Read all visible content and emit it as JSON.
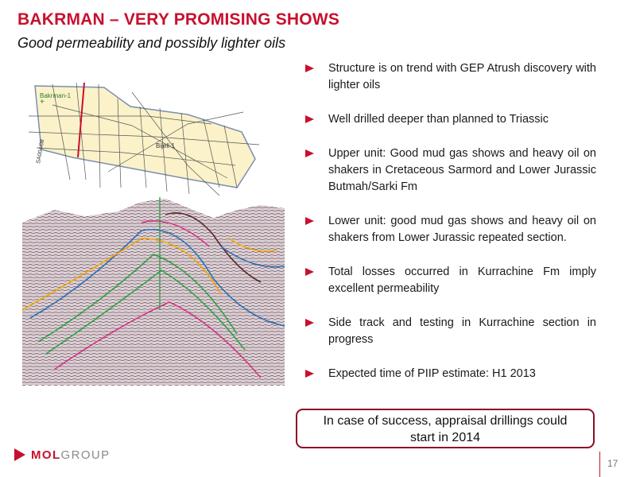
{
  "slide": {
    "title": "BAKRMAN – VERY PROMISING SHOWS",
    "subtitle": "Good permeability and possibly lighter oils",
    "page_number": "17"
  },
  "map": {
    "labels": {
      "well_1": "Bakrman-1",
      "well_2": "Bijell-1",
      "line": "SA004/08"
    }
  },
  "bullets": [
    "Structure is on trend with GEP Atrush discovery with lighter oils",
    "Well drilled deeper than planned to Triassic",
    "Upper unit: Good mud gas shows and heavy oil on shakers in Cretaceous Sarmord and Lower Jurassic Butmah/Sarki Fm",
    "Lower unit: good mud gas shows and heavy oil on shakers from Lower Jurassic repeated section.",
    "Total losses occurred in Kurrachine Fm imply excellent permeability",
    "Side track and testing in Kurrachine section in progress",
    "Expected time of PIIP estimate: H1 2013"
  ],
  "callout": {
    "line1": "In case of success, appraisal drillings could",
    "line2": "start in 2014"
  },
  "logo": {
    "part1": "MOL",
    "part2": "GROUP"
  },
  "colors": {
    "accent": "#c8102e",
    "callout_border": "#8b0f24",
    "map_fill": "#fbf2c9",
    "map_outline": "#7a8fb0"
  }
}
